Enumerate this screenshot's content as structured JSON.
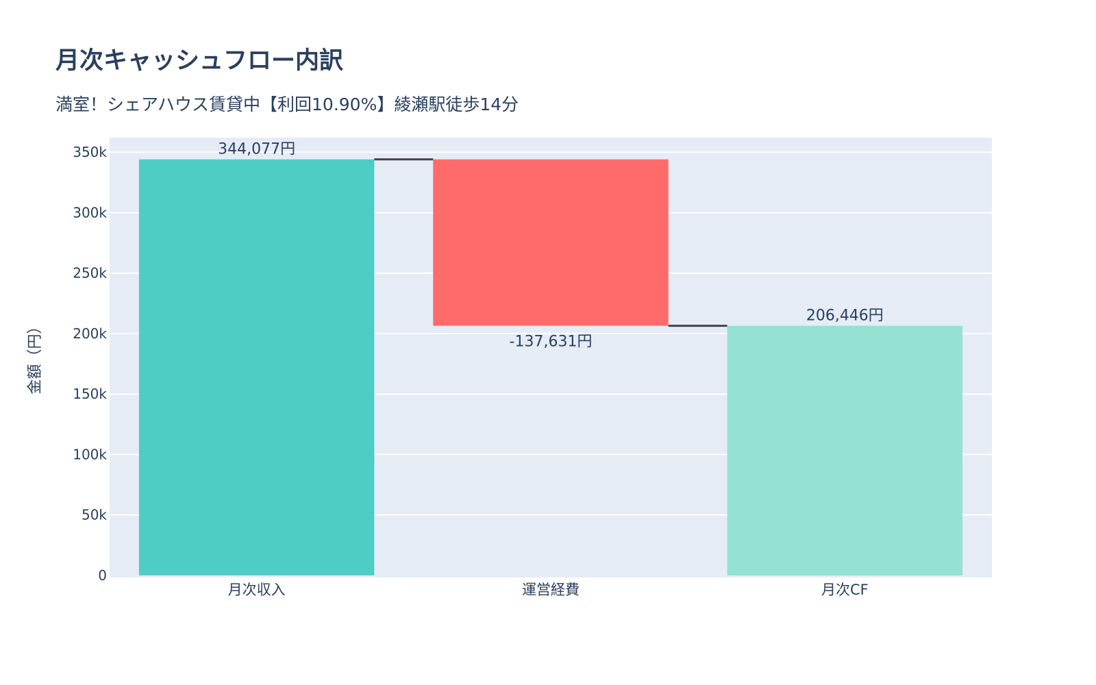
{
  "chart_data": {
    "type": "waterfall",
    "title": "月次キャッシュフロー内訳",
    "subtitle": "満室！シェアハウス賃貸中【利回10.90%】綾瀬駅徒歩14分",
    "xlabel": "",
    "ylabel": "金額（円）",
    "ylim": [
      0,
      362000
    ],
    "yticks": [
      0,
      50000,
      100000,
      150000,
      200000,
      250000,
      300000,
      350000
    ],
    "ytick_labels": [
      "0",
      "50k",
      "100k",
      "150k",
      "200k",
      "250k",
      "300k",
      "350k"
    ],
    "grid": true,
    "categories": [
      "月次収入",
      "運営経費",
      "月次CF"
    ],
    "measures": [
      "absolute",
      "relative",
      "total"
    ],
    "values": [
      344077,
      -137631,
      206446
    ],
    "data_labels": [
      "344,077円",
      "-137,631円",
      "206,446円"
    ],
    "colors": {
      "increasing": "#4ECDC4",
      "decreasing": "#FF6B6B",
      "total": "#95E1D3",
      "connector": "#444444",
      "plot_bg": "#E5ECF6"
    }
  }
}
